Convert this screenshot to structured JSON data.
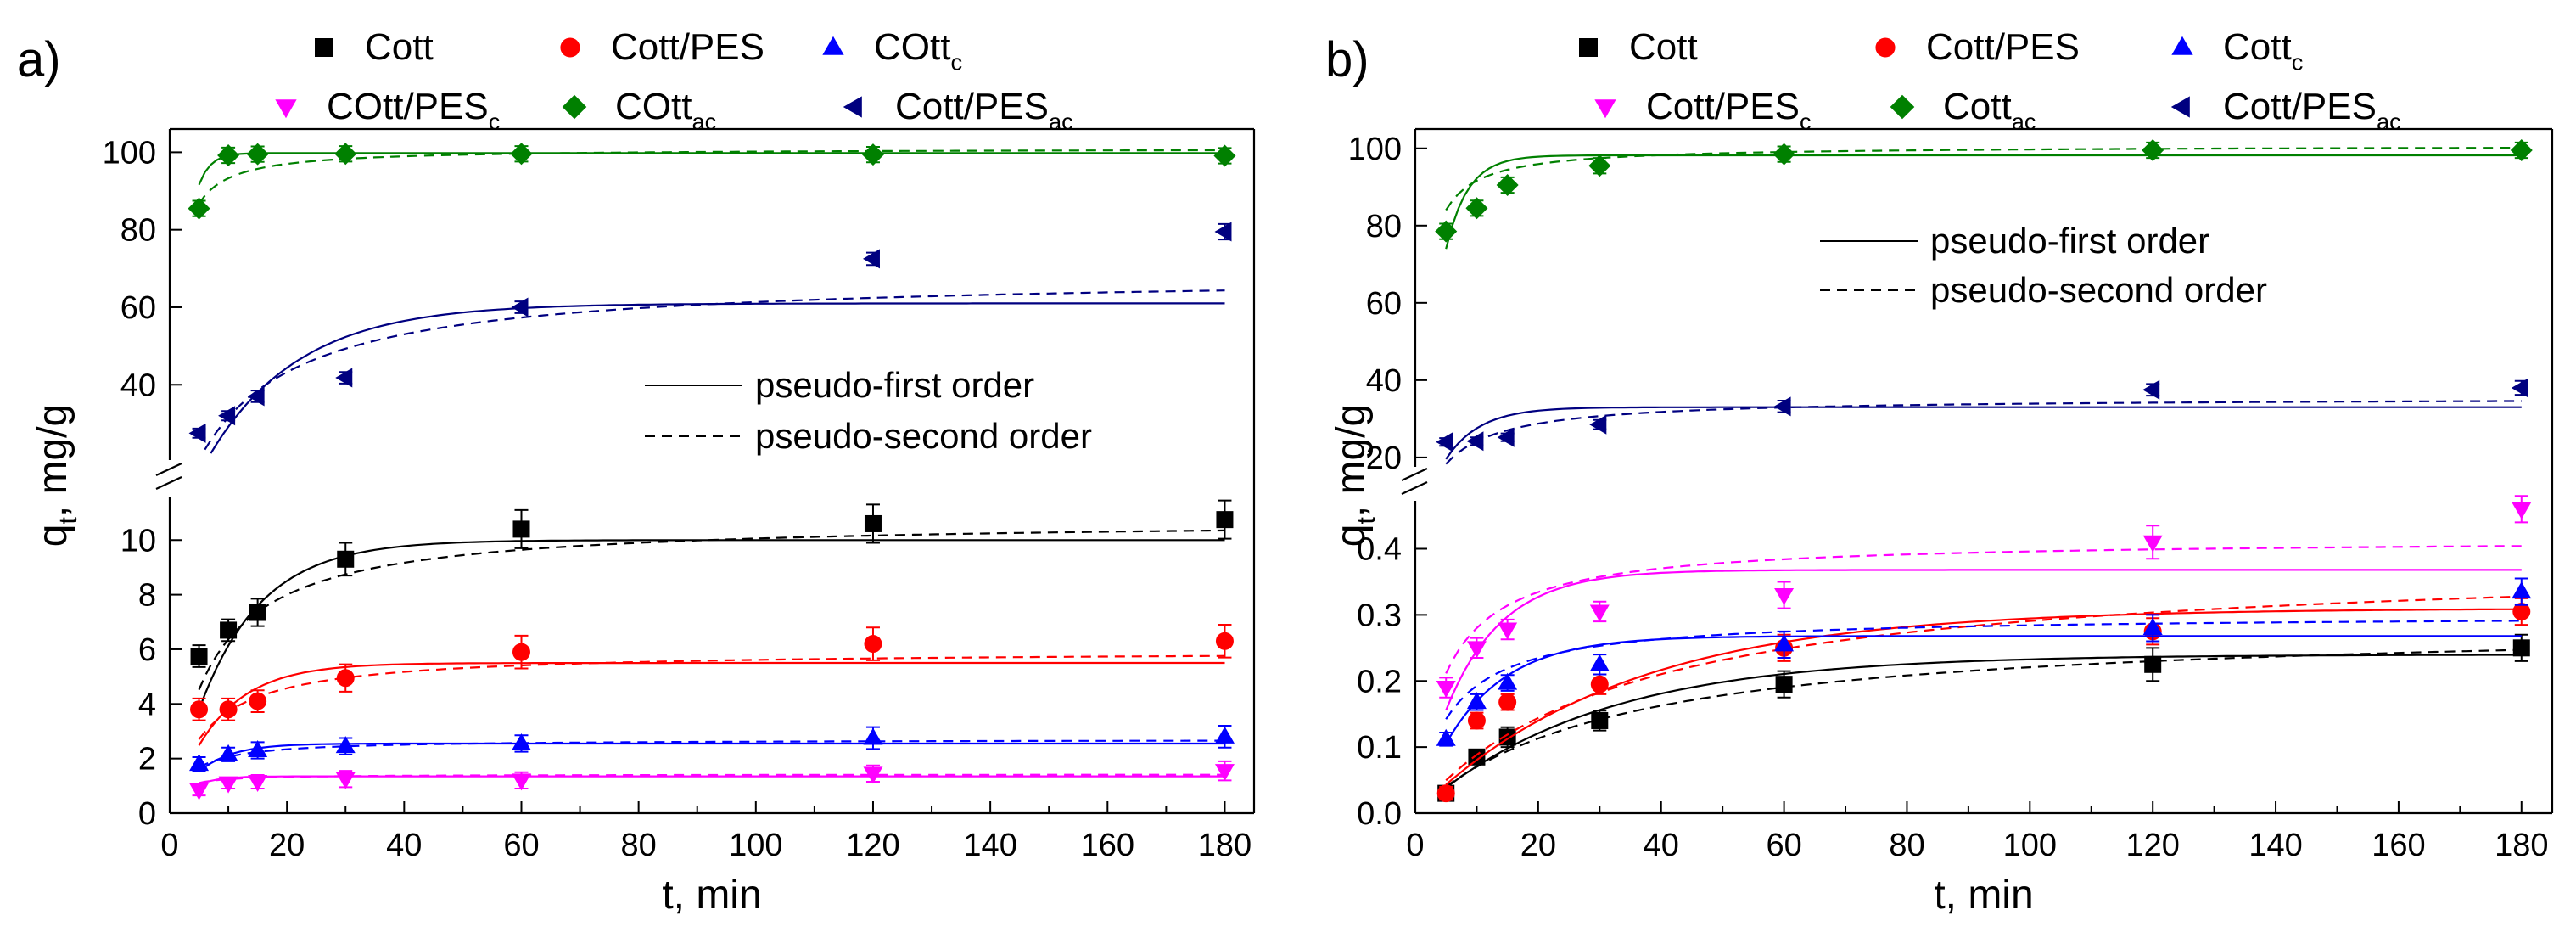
{
  "chart_data": [
    {
      "type": "scatter",
      "panel_label": "a)",
      "xlabel": "t, min",
      "ylabel": "q",
      "ylabel_sub": "t",
      "ylabel_unit": ", mg/g",
      "xlim": [
        0,
        185
      ],
      "xticks": [
        "0",
        "20",
        "40",
        "60",
        "80",
        "100",
        "120",
        "140",
        "160",
        "180"
      ],
      "y_lower": {
        "ylim": [
          0,
          11.5
        ],
        "ticks": [
          "0",
          "2",
          "4",
          "6",
          "8",
          "10"
        ]
      },
      "y_upper": {
        "ylim": [
          21,
          106
        ],
        "ticks": [
          "40",
          "60",
          "80",
          "100"
        ]
      },
      "legend": [
        {
          "key": "cott",
          "name": "Cott",
          "sub": ""
        },
        {
          "key": "pes",
          "name": "Cott/PES",
          "sub": ""
        },
        {
          "key": "cottc",
          "name": "COtt",
          "sub": "c"
        },
        {
          "key": "pesc",
          "name": "COtt/PES",
          "sub": "c"
        },
        {
          "key": "cottac",
          "name": "COtt",
          "sub": "ac"
        },
        {
          "key": "pesac",
          "name": "Cott/PES",
          "sub": "ac"
        }
      ],
      "fit_legend": [
        {
          "style": "solid",
          "label": "pseudo-first order"
        },
        {
          "style": "dashed",
          "label": "pseudo-second order"
        }
      ],
      "series": [
        {
          "key": "cott",
          "segment": "lower",
          "x": [
            5,
            10,
            15,
            30,
            60,
            120,
            180
          ],
          "values": [
            5.75,
            6.7,
            7.35,
            9.3,
            10.4,
            10.6,
            10.75
          ],
          "err": [
            0.4,
            0.4,
            0.5,
            0.6,
            0.7,
            0.7,
            0.7
          ],
          "fit1": {
            "qe": 10.0,
            "k": 0.095
          },
          "fit2": {
            "qe": 10.75,
            "k": 0.0135
          }
        },
        {
          "key": "pes",
          "segment": "lower",
          "x": [
            5,
            10,
            15,
            30,
            60,
            120,
            180
          ],
          "values": [
            3.8,
            3.8,
            4.1,
            4.95,
            5.9,
            6.2,
            6.3
          ],
          "err": [
            0.4,
            0.4,
            0.4,
            0.5,
            0.6,
            0.6,
            0.6
          ],
          "fit1": {
            "qe": 5.5,
            "k": 0.12
          },
          "fit2": {
            "qe": 5.95,
            "k": 0.028
          }
        },
        {
          "key": "cottc",
          "segment": "lower",
          "x": [
            5,
            10,
            15,
            30,
            60,
            120,
            180
          ],
          "values": [
            1.8,
            2.15,
            2.3,
            2.45,
            2.55,
            2.75,
            2.8
          ],
          "err": [
            0.25,
            0.25,
            0.3,
            0.3,
            0.3,
            0.4,
            0.4
          ],
          "fit1": {
            "qe": 2.55,
            "k": 0.18
          },
          "fit2": {
            "qe": 2.7,
            "k": 0.12
          }
        },
        {
          "key": "pesc",
          "segment": "lower",
          "x": [
            5,
            10,
            15,
            30,
            60,
            120,
            180
          ],
          "values": [
            0.85,
            1.1,
            1.15,
            1.25,
            1.2,
            1.45,
            1.55
          ],
          "err": [
            0.2,
            0.2,
            0.25,
            0.3,
            0.3,
            0.3,
            0.35
          ],
          "fit1": {
            "qe": 1.35,
            "k": 0.3
          },
          "fit2": {
            "qe": 1.42,
            "k": 0.5
          }
        },
        {
          "key": "cottac",
          "segment": "upper",
          "x": [
            5,
            10,
            15,
            30,
            60,
            120,
            180
          ],
          "values": [
            85.5,
            99.2,
            99.5,
            99.6,
            99.6,
            99.4,
            99.1
          ],
          "err": [
            2.0,
            2.0,
            2.0,
            2.0,
            2.0,
            2.0,
            2.0
          ],
          "fit1": {
            "qe": 99.8,
            "k": 0.5
          },
          "fit2": {
            "qe": 101.0,
            "k": 0.012
          }
        },
        {
          "key": "pesac",
          "segment": "upper",
          "x": [
            5,
            10,
            15,
            30,
            60,
            120,
            180
          ],
          "values": [
            27.5,
            32.0,
            37.0,
            41.8,
            60.0,
            72.5,
            79.5
          ],
          "err": [
            1.2,
            1.2,
            1.5,
            1.5,
            1.5,
            1.6,
            2.0
          ],
          "fit1": {
            "qe": 61.0,
            "k": 0.065
          },
          "fit2": {
            "qe": 68.5,
            "k": 0.00125
          }
        }
      ]
    },
    {
      "type": "scatter",
      "panel_label": "b)",
      "xlabel": "t, min",
      "ylabel": "q",
      "ylabel_sub": "t",
      "ylabel_unit": ", mg/g",
      "xlim": [
        0,
        185
      ],
      "xticks": [
        "0",
        "20",
        "40",
        "60",
        "80",
        "100",
        "120",
        "140",
        "160",
        "180"
      ],
      "y_lower": {
        "ylim": [
          0,
          0.47
        ],
        "ticks": [
          "0.0",
          "0.1",
          "0.2",
          "0.3",
          "0.4"
        ]
      },
      "y_upper": {
        "ylim": [
          18,
          105
        ],
        "ticks": [
          "20",
          "40",
          "60",
          "80",
          "100"
        ]
      },
      "legend": [
        {
          "key": "cott",
          "name": "Cott",
          "sub": ""
        },
        {
          "key": "pes",
          "name": "Cott/PES",
          "sub": ""
        },
        {
          "key": "cottc",
          "name": "Cott",
          "sub": "c"
        },
        {
          "key": "pesc",
          "name": "Cott/PES",
          "sub": "c"
        },
        {
          "key": "cottac",
          "name": "Cott",
          "sub": "ac"
        },
        {
          "key": "pesac",
          "name": "Cott/PES",
          "sub": "ac"
        }
      ],
      "fit_legend": [
        {
          "style": "solid",
          "label": "pseudo-first order"
        },
        {
          "style": "dashed",
          "label": "pseudo-second order"
        }
      ],
      "series": [
        {
          "key": "cott",
          "segment": "lower",
          "x": [
            5,
            10,
            15,
            30,
            60,
            120,
            180
          ],
          "values": [
            0.03,
            0.085,
            0.115,
            0.14,
            0.195,
            0.225,
            0.25
          ],
          "err": [
            0.01,
            0.01,
            0.015,
            0.015,
            0.02,
            0.025,
            0.02
          ],
          "fit1": {
            "qe": 0.24,
            "k": 0.035
          },
          "fit2": {
            "qe": 0.29,
            "k": 0.11
          }
        },
        {
          "key": "pes",
          "segment": "lower",
          "x": [
            5,
            10,
            15,
            30,
            60,
            120,
            180
          ],
          "values": [
            0.03,
            0.14,
            0.168,
            0.195,
            0.25,
            0.275,
            0.305
          ],
          "err": [
            0.01,
            0.012,
            0.012,
            0.015,
            0.02,
            0.02,
            0.02
          ],
          "fit1": {
            "qe": 0.31,
            "k": 0.03
          },
          "fit2": {
            "qe": 0.39,
            "k": 0.075
          }
        },
        {
          "key": "cottc",
          "segment": "lower",
          "x": [
            5,
            10,
            15,
            30,
            60,
            120,
            180
          ],
          "values": [
            0.112,
            0.168,
            0.197,
            0.225,
            0.255,
            0.28,
            0.335
          ],
          "err": [
            0.01,
            0.012,
            0.012,
            0.015,
            0.02,
            0.02,
            0.02
          ],
          "fit1": {
            "qe": 0.268,
            "k": 0.1
          },
          "fit2": {
            "qe": 0.3,
            "k": 0.6
          }
        },
        {
          "key": "pesc",
          "segment": "lower",
          "x": [
            5,
            10,
            15,
            30,
            60,
            120,
            180
          ],
          "values": [
            0.19,
            0.25,
            0.278,
            0.305,
            0.33,
            0.41,
            0.46
          ],
          "err": [
            0.015,
            0.015,
            0.015,
            0.015,
            0.02,
            0.025,
            0.02
          ],
          "fit1": {
            "qe": 0.368,
            "k": 0.11
          },
          "fit2": {
            "qe": 0.415,
            "k": 0.5
          }
        },
        {
          "key": "cottac",
          "segment": "upper",
          "x": [
            5,
            10,
            15,
            30,
            60,
            120,
            180
          ],
          "values": [
            78.5,
            84.5,
            90.5,
            95.5,
            98.5,
            99.5,
            99.5
          ],
          "err": [
            2.0,
            2.0,
            2.0,
            2.0,
            2.0,
            2.0,
            2.0
          ],
          "fit1": {
            "qe": 98.2,
            "k": 0.28
          },
          "fit2": {
            "qe": 100.7,
            "k": 0.01
          }
        },
        {
          "key": "pesac",
          "segment": "upper",
          "x": [
            5,
            10,
            15,
            30,
            60,
            120,
            180
          ],
          "values": [
            24.0,
            24.2,
            25.2,
            28.5,
            33.2,
            37.5,
            38.0
          ],
          "err": [
            1.0,
            1.0,
            1.0,
            1.2,
            1.5,
            1.5,
            1.8
          ],
          "fit1": {
            "qe": 33.0,
            "k": 0.18
          },
          "fit2": {
            "qe": 35.5,
            "k": 0.006
          }
        }
      ]
    }
  ],
  "colors": {
    "cott": "#000000",
    "pes": "#ff0000",
    "cottc": "#0000ff",
    "pesc": "#ff00ff",
    "cottac": "#008000",
    "pesac": "#000080"
  },
  "markers": {
    "cott": "square",
    "pes": "circle",
    "cottc": "triangle-up",
    "pesc": "triangle-down",
    "cottac": "diamond",
    "pesac": "triangle-left"
  }
}
